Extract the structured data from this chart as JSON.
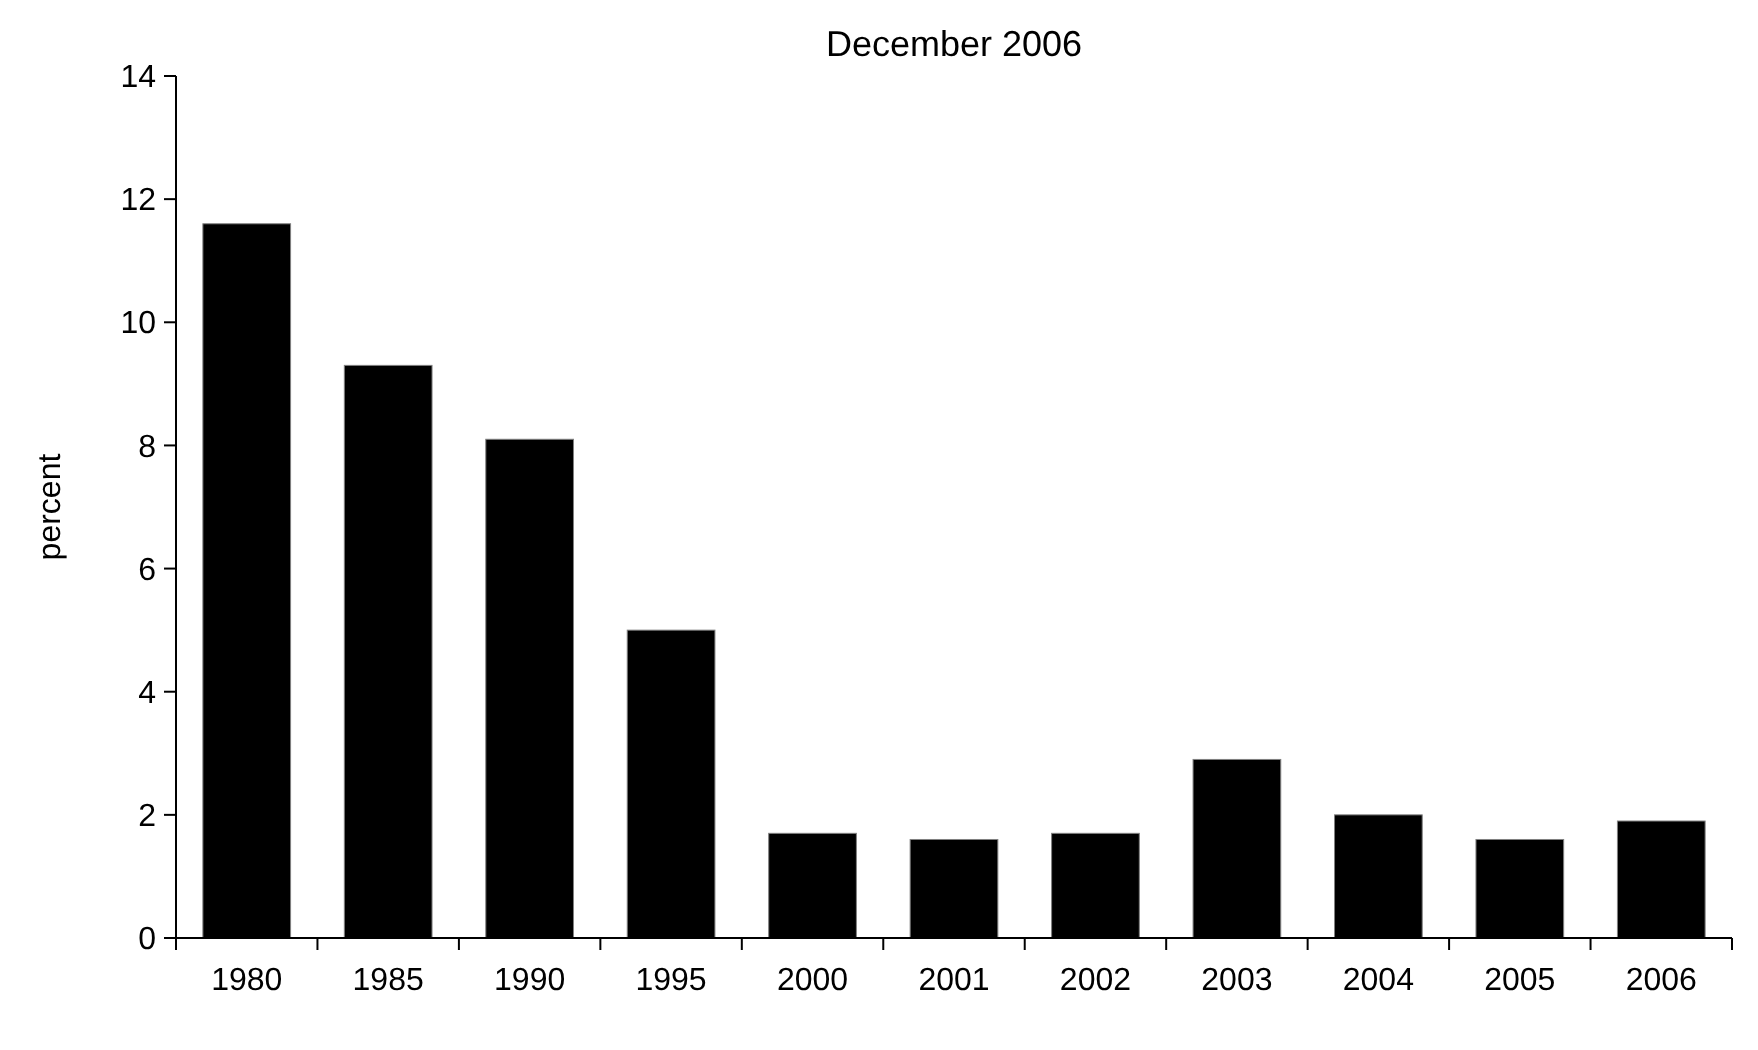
{
  "chart_data": {
    "type": "bar",
    "title": "December 2006",
    "ylabel": "percent",
    "categories": [
      "1980",
      "1985",
      "1990",
      "1995",
      "2000",
      "2001",
      "2002",
      "2003",
      "2004",
      "2005",
      "2006"
    ],
    "values": [
      11.6,
      9.3,
      8.1,
      5.0,
      1.7,
      1.6,
      1.7,
      2.9,
      2.0,
      1.6,
      1.9
    ],
    "color": "#000000",
    "ylim": [
      0,
      14
    ],
    "yticks": [
      0,
      2,
      4,
      6,
      8,
      10,
      12,
      14
    ],
    "grid": false
  }
}
